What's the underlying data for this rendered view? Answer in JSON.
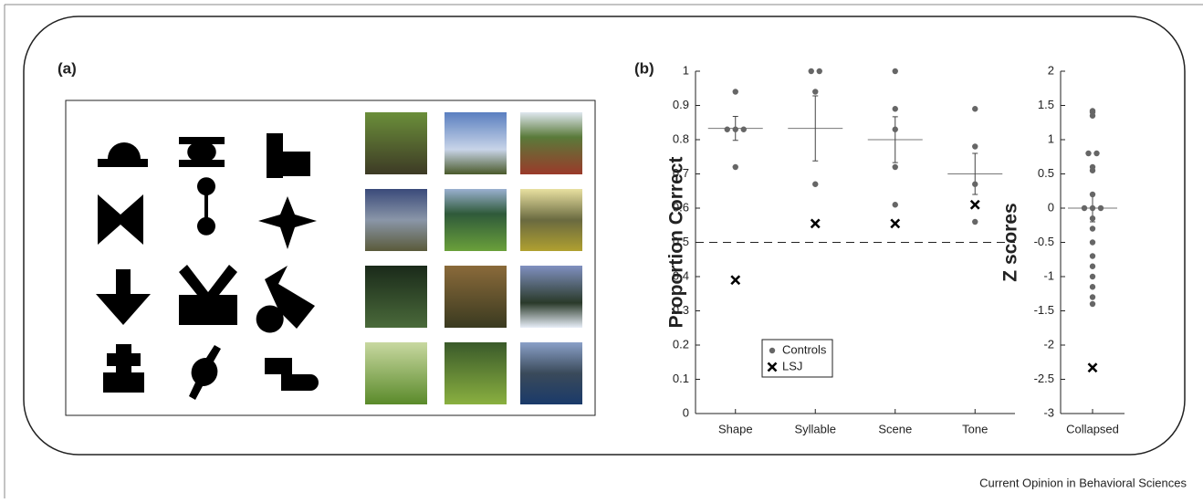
{
  "panel_labels": [
    "(a)",
    "(b)"
  ],
  "footer": "Current Opinion in Behavioral Sciences",
  "chart_data": [
    {
      "type": "strip",
      "ylabel": "Proportion Correct",
      "categories": [
        "Shape",
        "Syllable",
        "Scene",
        "Tone"
      ],
      "series": [
        {
          "name": "Controls",
          "color": "#666666",
          "marker": "dot",
          "values": [
            [
              0.94,
              0.83,
              0.83,
              0.83,
              0.72
            ],
            [
              1,
              1,
              0.94,
              0.67
            ],
            [
              1,
              0.89,
              0.83,
              0.72,
              0.61
            ],
            [
              0.89,
              0.78,
              0.67,
              0.56
            ]
          ]
        },
        {
          "name": "LSJ",
          "color": "#000000",
          "marker": "x",
          "values": [
            0.39,
            0.555,
            0.555,
            0.61
          ]
        }
      ],
      "means": [
        0.833,
        0.833,
        0.8,
        0.7
      ],
      "errors": [
        0.035,
        0.095,
        0.067,
        0.06
      ],
      "reference_line": 0.5,
      "ylim": [
        0,
        1
      ],
      "yticks": [
        0,
        0.1,
        0.2,
        0.3,
        0.4,
        0.5,
        0.6,
        0.7,
        0.8,
        0.9,
        1
      ],
      "legend": "lower left"
    },
    {
      "type": "strip",
      "ylabel": "Z scores",
      "categories": [
        "Collapsed"
      ],
      "series": [
        {
          "color": "#666666",
          "marker": "dot",
          "values": [
            [
              1.42,
              1.4,
              1.35,
              0.8,
              0.8,
              0.6,
              0.55,
              0.2,
              0,
              0,
              0,
              -0.15,
              -0.3,
              -0.5,
              -0.7,
              -0.85,
              -1.0,
              -1.15,
              -1.3,
              -1.4
            ]
          ]
        },
        {
          "color": "#000000",
          "marker": "x",
          "values": [
            -2.33
          ]
        }
      ],
      "means": [
        0
      ],
      "errors": [
        0.2
      ],
      "ylim": [
        -3,
        2
      ],
      "yticks": [
        -3,
        -2.5,
        -2,
        -1.5,
        -1,
        -0.5,
        0,
        0.5,
        1,
        1.5,
        2
      ]
    }
  ]
}
